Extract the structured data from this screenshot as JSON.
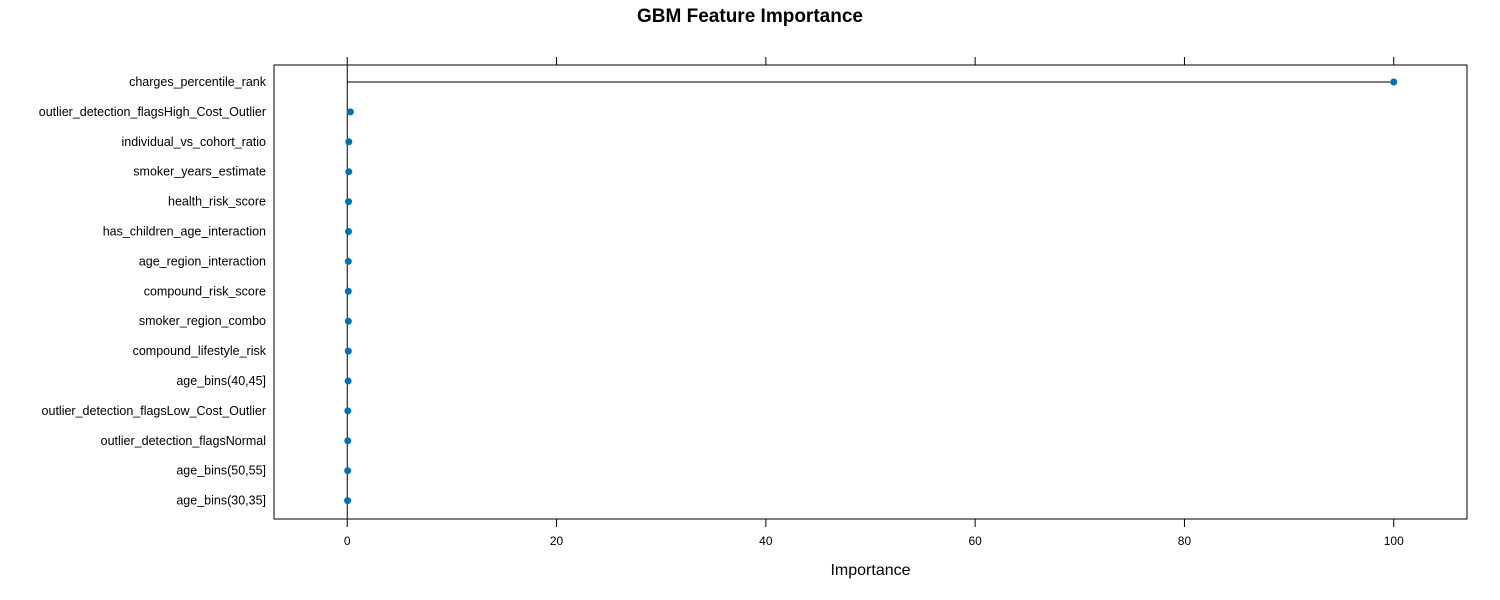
{
  "chart_data": {
    "type": "dot",
    "title": "GBM Feature Importance",
    "xlabel": "Importance",
    "ylabel": "",
    "xlim": [
      -7,
      107
    ],
    "xticks": [
      0,
      20,
      40,
      60,
      80,
      100
    ],
    "grid": false,
    "categories": [
      "charges_percentile_rank",
      "outlier_detection_flagsHigh_Cost_Outlier",
      "individual_vs_cohort_ratio",
      "smoker_years_estimate",
      "health_risk_score",
      "has_children_age_interaction",
      "age_region_interaction",
      "compound_risk_score",
      "smoker_region_combo",
      "compound_lifestyle_risk",
      "age_bins(40,45]",
      "outlier_detection_flagsLow_Cost_Outlier",
      "outlier_detection_flagsNormal",
      "age_bins(50,55]",
      "age_bins(30,35]"
    ],
    "values": [
      100,
      0.3,
      0.15,
      0.15,
      0.12,
      0.12,
      0.1,
      0.1,
      0.1,
      0.1,
      0.08,
      0.05,
      0.05,
      0.04,
      0.03
    ],
    "colors": {
      "point": "#0072B2",
      "line": "#000000",
      "frame": "#000000"
    }
  }
}
